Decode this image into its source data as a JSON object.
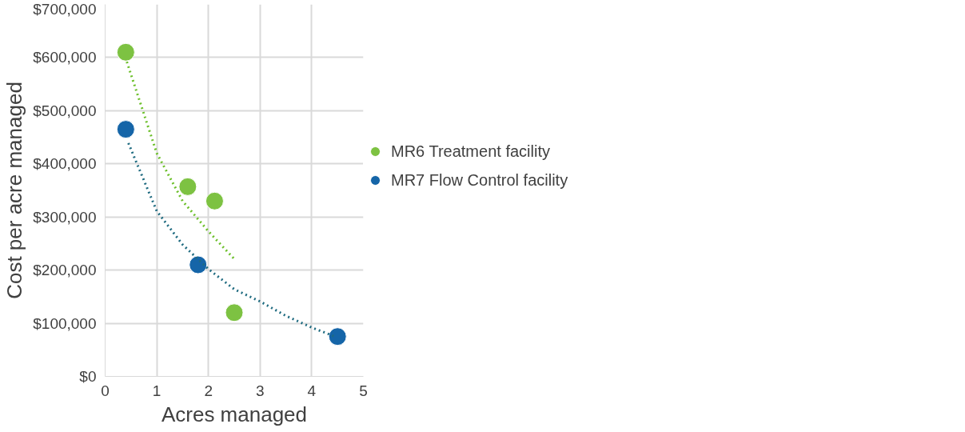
{
  "chart_data": {
    "type": "scatter",
    "xlabel": "Acres managed",
    "ylabel": "Cost per acre managed",
    "xlim": [
      0,
      5
    ],
    "xticks": [
      0,
      1,
      2,
      3,
      4,
      5
    ],
    "ylim": [
      0,
      700000
    ],
    "yticks": [
      {
        "value": 0,
        "label": "$0"
      },
      {
        "value": 100000,
        "label": "$100,000"
      },
      {
        "value": 200000,
        "label": "$200,000"
      },
      {
        "value": 300000,
        "label": "$300,000"
      },
      {
        "value": 400000,
        "label": "$400,000"
      },
      {
        "value": 500000,
        "label": "$500,000"
      },
      {
        "value": 600000,
        "label": "$600,000"
      },
      {
        "value": 700000,
        "label": "$700,000"
      }
    ],
    "grid": true,
    "legend": "right",
    "marker": "circle",
    "series": [
      {
        "name": "MR6 Treatment facility",
        "color": "#7dc242",
        "x": [
          0.4,
          1.6,
          2.12,
          2.5
        ],
        "values": [
          610000,
          357000,
          330000,
          120000
        ]
      },
      {
        "name": "MR7 Flow Control facility",
        "color": "#1565a8",
        "x": [
          0.4,
          1.8,
          4.5
        ],
        "values": [
          465000,
          210000,
          75000
        ]
      },
      {
        "type": "line",
        "line_style": "dotted",
        "marker": "none",
        "color": "#6cbf2a",
        "x": [
          0.42,
          1,
          1.5,
          2,
          2.5
        ],
        "values": [
          592000,
          420000,
          330000,
          273000,
          221000
        ]
      },
      {
        "type": "line",
        "line_style": "dotted",
        "marker": "none",
        "color": "#1f6b80",
        "x": [
          0.45,
          1,
          1.5,
          2,
          2.5,
          3,
          3.5,
          4,
          4.45
        ],
        "values": [
          439000,
          311000,
          248000,
          202000,
          164000,
          141000,
          114000,
          92000,
          75000
        ]
      }
    ]
  }
}
